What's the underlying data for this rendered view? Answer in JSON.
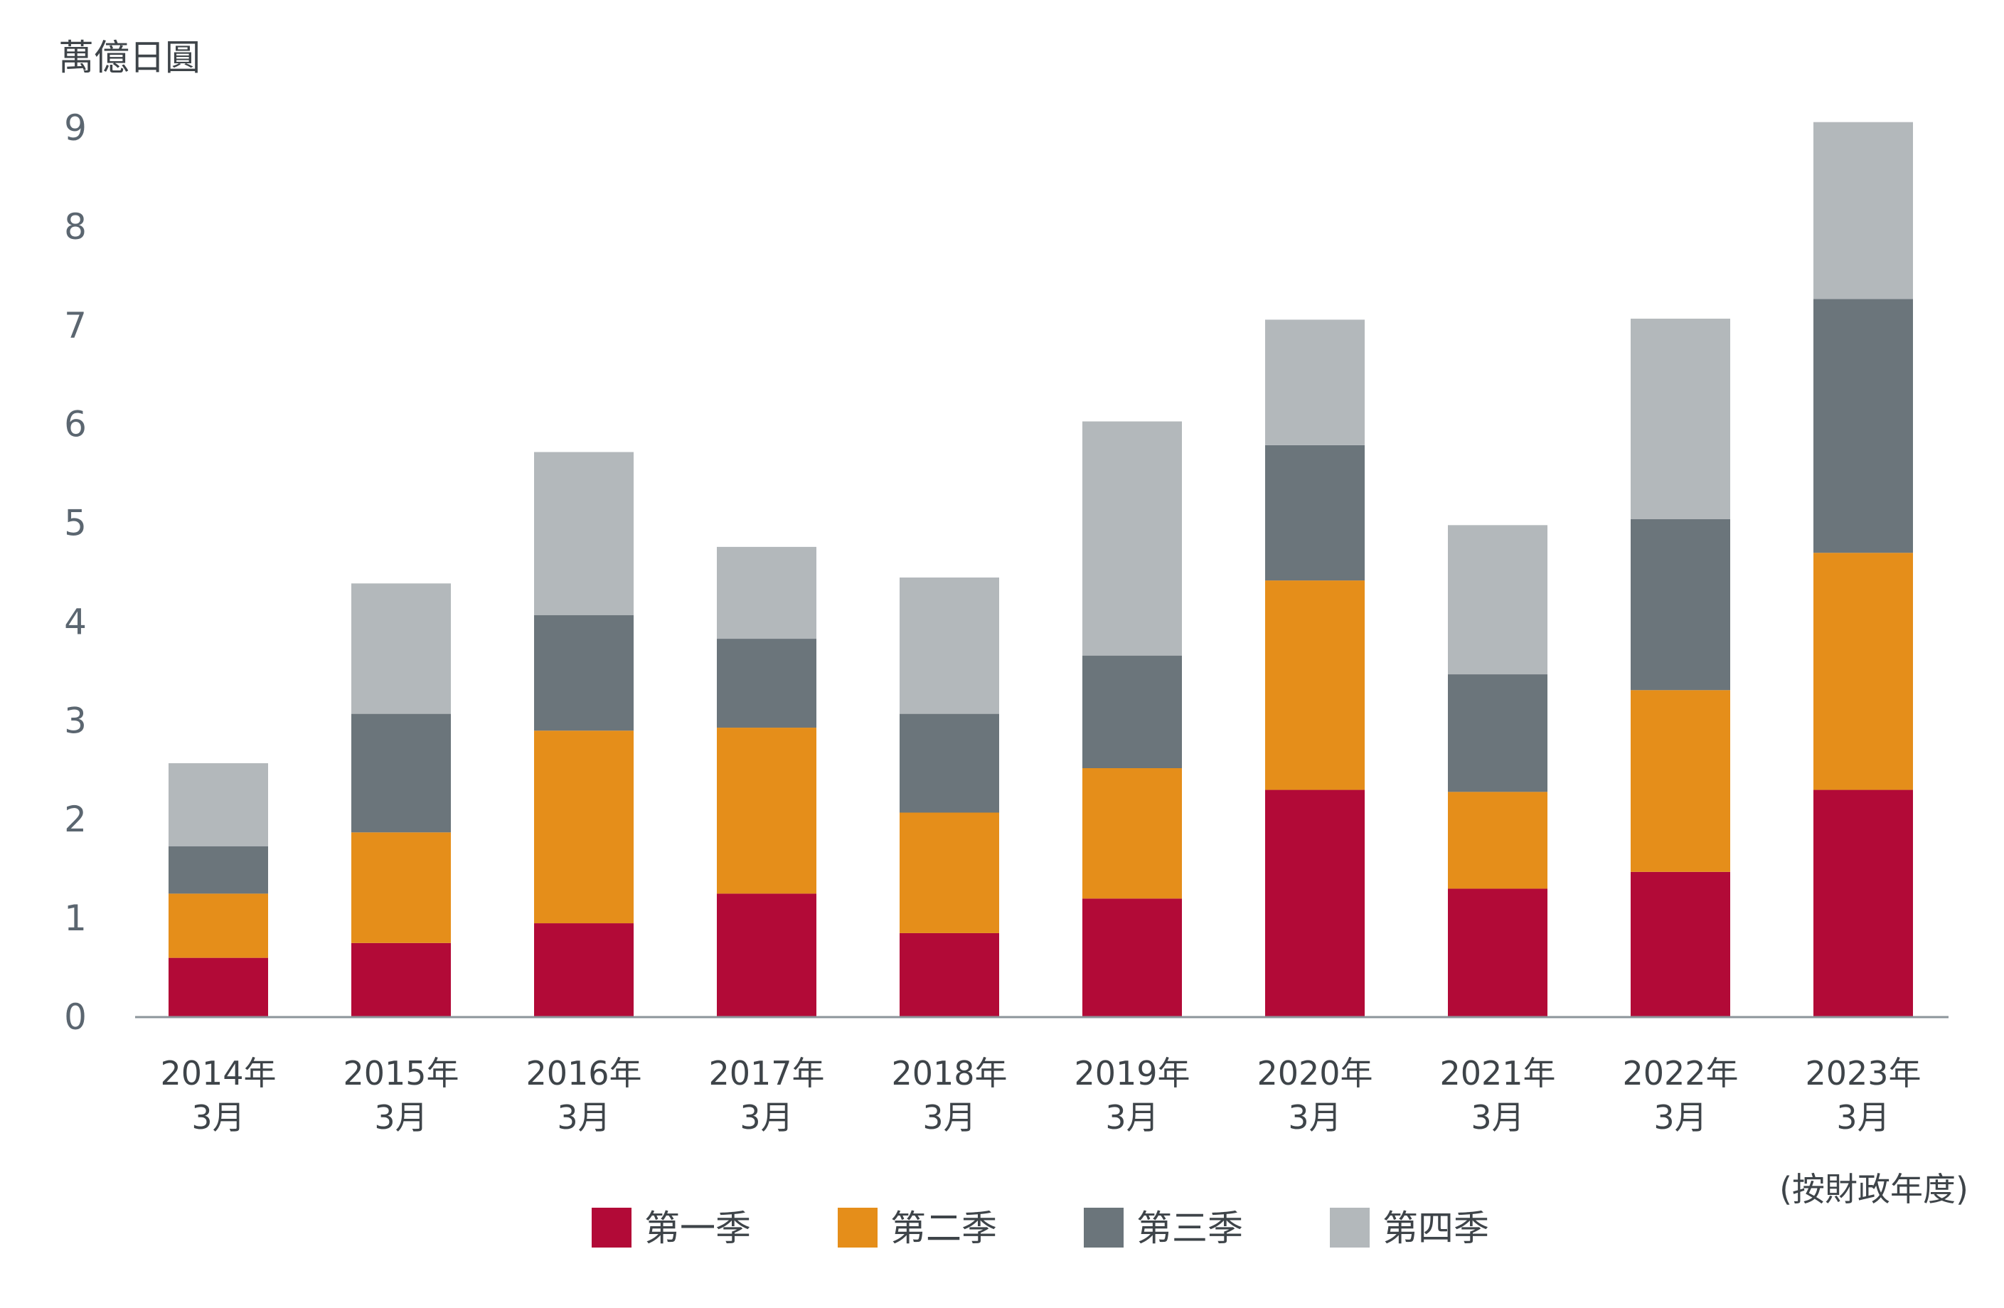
{
  "chart_data": {
    "type": "bar",
    "stacked": true,
    "unit": "萬億日圓",
    "note": "(按財政年度)",
    "categories": [
      [
        "2014年",
        "3月"
      ],
      [
        "2015年",
        "3月"
      ],
      [
        "2016年",
        "3月"
      ],
      [
        "2017年",
        "3月"
      ],
      [
        "2018年",
        "3月"
      ],
      [
        "2019年",
        "3月"
      ],
      [
        "2020年",
        "3月"
      ],
      [
        "2021年",
        "3月"
      ],
      [
        "2022年",
        "3月"
      ],
      [
        "2023年",
        "3月"
      ]
    ],
    "series": [
      {
        "name": "第一季",
        "color": "#b20a37",
        "values": [
          0.6,
          0.75,
          0.95,
          1.25,
          0.85,
          1.2,
          2.3,
          1.3,
          1.47,
          2.3
        ]
      },
      {
        "name": "第二季",
        "color": "#e58e1a",
        "values": [
          0.65,
          1.12,
          1.95,
          1.68,
          1.22,
          1.32,
          2.12,
          0.98,
          1.84,
          2.4
        ]
      },
      {
        "name": "第三季",
        "color": "#6b757b",
        "values": [
          0.48,
          1.2,
          1.17,
          0.9,
          1.0,
          1.14,
          1.37,
          1.19,
          1.73,
          2.57
        ]
      },
      {
        "name": "第四季",
        "color": "#b3b8bb",
        "values": [
          0.84,
          1.32,
          1.65,
          0.93,
          1.38,
          2.37,
          1.27,
          1.51,
          2.03,
          1.79
        ]
      }
    ],
    "ylim": [
      0,
      9
    ],
    "yticks": [
      0,
      1,
      2,
      3,
      4,
      5,
      6,
      7,
      8,
      9
    ],
    "grid": false,
    "legend_position": "bottom-center"
  }
}
